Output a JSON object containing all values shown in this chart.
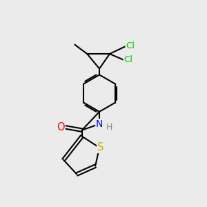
{
  "bg_color": "#ebebeb",
  "bond_color": "#000000",
  "bond_width": 1.5,
  "atom_colors": {
    "O": "#ff0000",
    "N": "#0000ff",
    "S": "#ccaa00",
    "Cl": "#00cc00",
    "H": "#888888",
    "C": "#000000"
  },
  "font_size": 9.5
}
